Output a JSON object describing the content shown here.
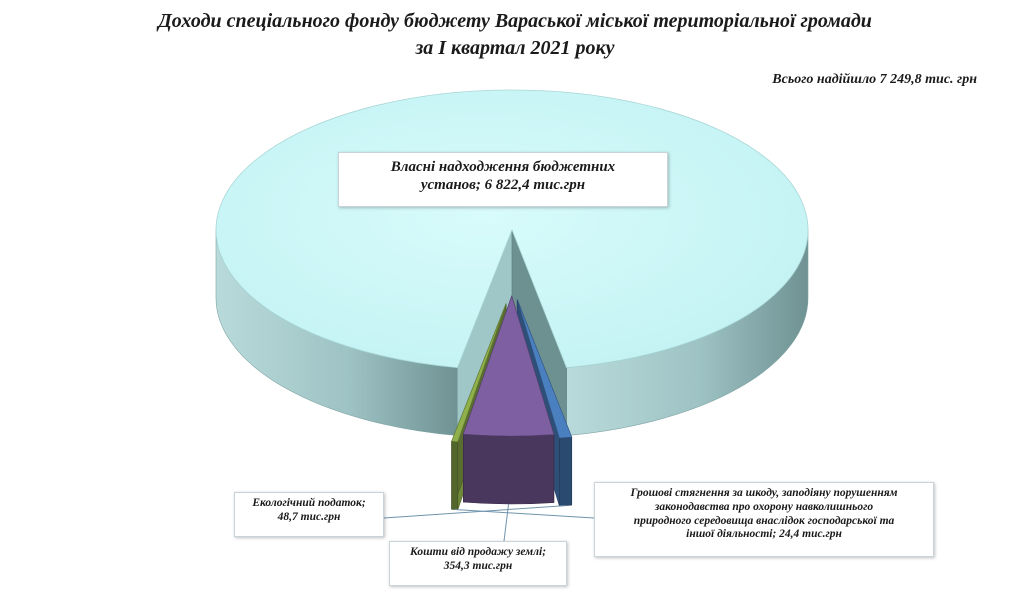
{
  "title_line1": "Доходи спеціального фонду бюджету Вараської міської  територіальної громади",
  "title_line2": "за І квартал 2021 року",
  "total_text": "Всього надійшло  7 249,8 тис. грн",
  "chart_data": {
    "type": "pie",
    "title": "Доходи спеціального фонду бюджету Вараської міської  територіальної громади за І квартал 2021 року",
    "total": 7249.8,
    "unit": "тис.грн",
    "slices": [
      {
        "label_line1": "Власні надходження бюджетних",
        "label_line2": "установ; 6 822,4 тис.грн",
        "value": 6822.4,
        "color": "#c9f6f7"
      },
      {
        "label_line1": "Екологічний податок;",
        "label_line2": "48,7 тис.грн",
        "value": 48.7,
        "color": "#4a7fc0"
      },
      {
        "label_line1": "Кошти від продажу землі;",
        "label_line2": "354,3 тис.грн",
        "value": 354.3,
        "color": "#7d5fa2"
      },
      {
        "label_line1": "Грошові стягнення за шкоду, заподіяну порушенням",
        "label_line2": "законодавства про охорону навколишнього",
        "label_line3": "природного середовища внаслідок господарської та",
        "label_line4": "іншої діяльності;  24,4 тис.грн",
        "value": 24.4,
        "color": "#8fb04a"
      }
    ]
  }
}
